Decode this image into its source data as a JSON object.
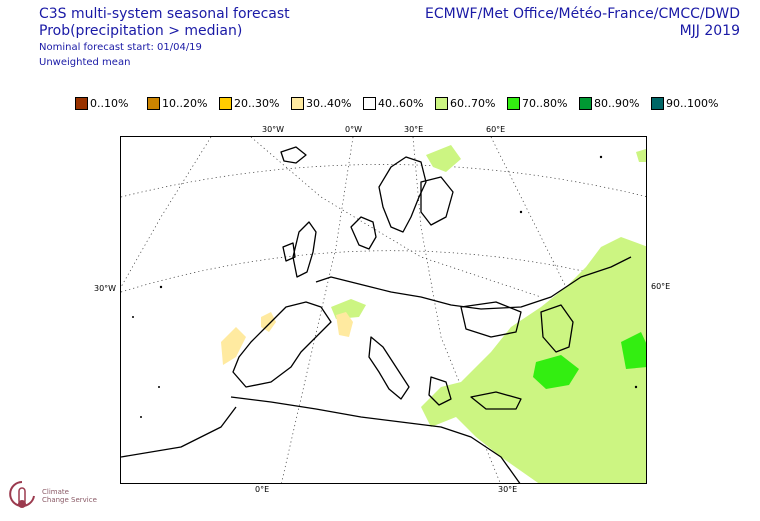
{
  "header": {
    "title": "C3S multi-system seasonal forecast",
    "subtitle": "Prob(precipitation > median)",
    "forecast_start": "Nominal forecast start: 01/04/19",
    "mean_type": "Unweighted mean",
    "centres": "ECMWF/Met Office/Météo-France/CMCC/DWD",
    "period": "MJJ 2019"
  },
  "legend": [
    {
      "label": "0..10%",
      "color": "#993300"
    },
    {
      "label": "10..20%",
      "color": "#cc8400"
    },
    {
      "label": "20..30%",
      "color": "#ffcc00"
    },
    {
      "label": "30..40%",
      "color": "#ffeaa0"
    },
    {
      "label": "40..60%",
      "color": "#ffffff"
    },
    {
      "label": "60..70%",
      "color": "#ccf582"
    },
    {
      "label": "70..80%",
      "color": "#33ee11"
    },
    {
      "label": "80..90%",
      "color": "#009933"
    },
    {
      "label": "90..100%",
      "color": "#006666"
    }
  ],
  "grid_labels": {
    "top": [
      "30°W",
      "0°W",
      "30°E",
      "60°E"
    ],
    "left": "30°W",
    "right": "60°E",
    "bottom": [
      "0°E",
      "30°E"
    ]
  },
  "logo": {
    "line1": "Climate",
    "line2": "Change Service"
  }
}
